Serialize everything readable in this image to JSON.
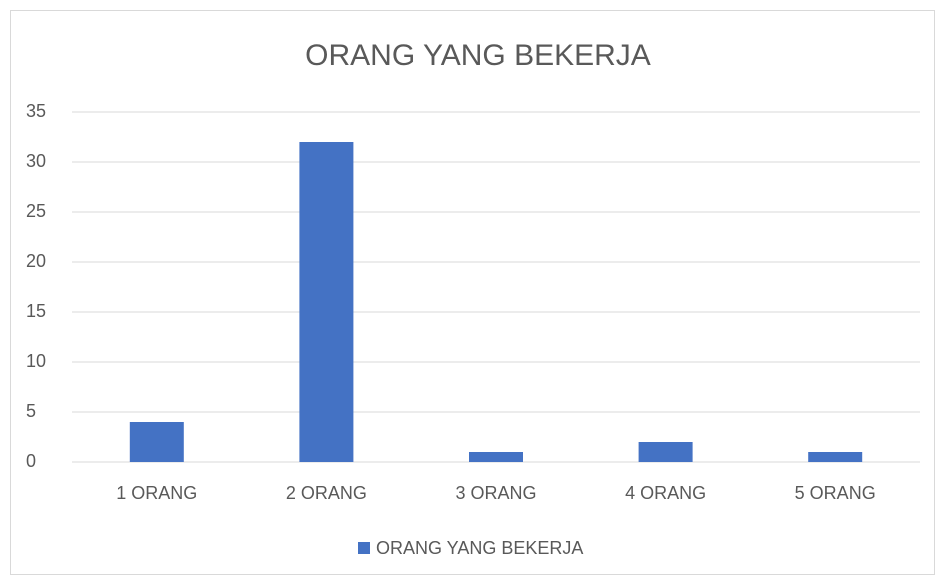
{
  "chart_data": {
    "type": "bar",
    "title": "ORANG YANG BEKERJA",
    "categories": [
      "1 ORANG",
      "2 ORANG",
      "3 ORANG",
      "4 ORANG",
      "5 ORANG"
    ],
    "series": [
      {
        "name": "ORANG YANG BEKERJA",
        "color": "#4472c4",
        "values": [
          4,
          32,
          1,
          2,
          1
        ]
      }
    ],
    "ylim": [
      0,
      35
    ],
    "yticks": [
      0,
      5,
      10,
      15,
      20,
      25,
      30,
      35
    ],
    "grid": true,
    "legend": "bottom"
  }
}
